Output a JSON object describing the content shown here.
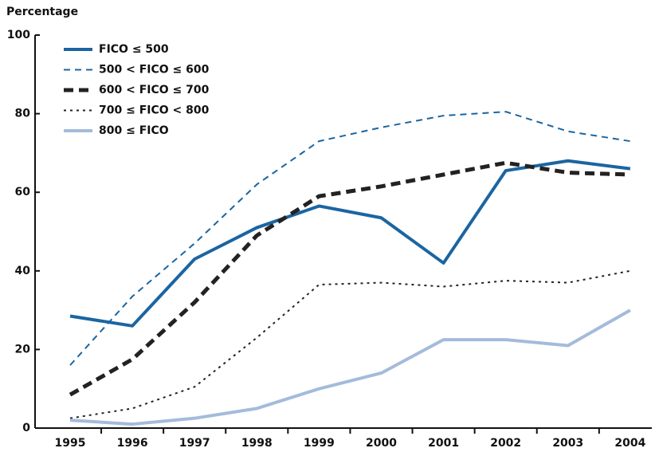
{
  "chart_data": {
    "type": "line",
    "y_label": "Percentage",
    "categories": [
      "1995",
      "1996",
      "1997",
      "1998",
      "1999",
      "2000",
      "2001",
      "2002",
      "2003",
      "2004"
    ],
    "series": [
      {
        "name": "FICO ≤ 500",
        "color": "#1b65a1",
        "style": "solid",
        "values": [
          28.5,
          26,
          43,
          51,
          56.5,
          53.5,
          42,
          65.5,
          68,
          66
        ]
      },
      {
        "name": "500 < FICO ≤ 600",
        "color": "#1b65a1",
        "style": "dashed",
        "values": [
          16,
          33.5,
          47,
          62,
          73,
          76.5,
          79.5,
          80.5,
          75.5,
          73
        ]
      },
      {
        "name": "600 < FICO ≤ 700",
        "color": "#222222",
        "style": "dashed",
        "values": [
          8.5,
          17.5,
          32,
          49,
          59,
          61.5,
          64.5,
          67.5,
          65,
          64.5
        ]
      },
      {
        "name": "700 ≤ FICO < 800",
        "color": "#222222",
        "style": "dotted",
        "values": [
          2.5,
          5,
          10.5,
          23,
          36.5,
          37,
          36,
          37.5,
          37,
          40
        ]
      },
      {
        "name": "800 ≤ FICO",
        "color": "#a4bbdb",
        "style": "solid",
        "values": [
          2,
          1,
          2.5,
          5,
          10,
          14,
          22.5,
          22.5,
          21,
          30
        ]
      }
    ],
    "ylim": [
      0,
      100
    ],
    "yticks": [
      0,
      20,
      40,
      60,
      80,
      100
    ],
    "grid": false
  }
}
